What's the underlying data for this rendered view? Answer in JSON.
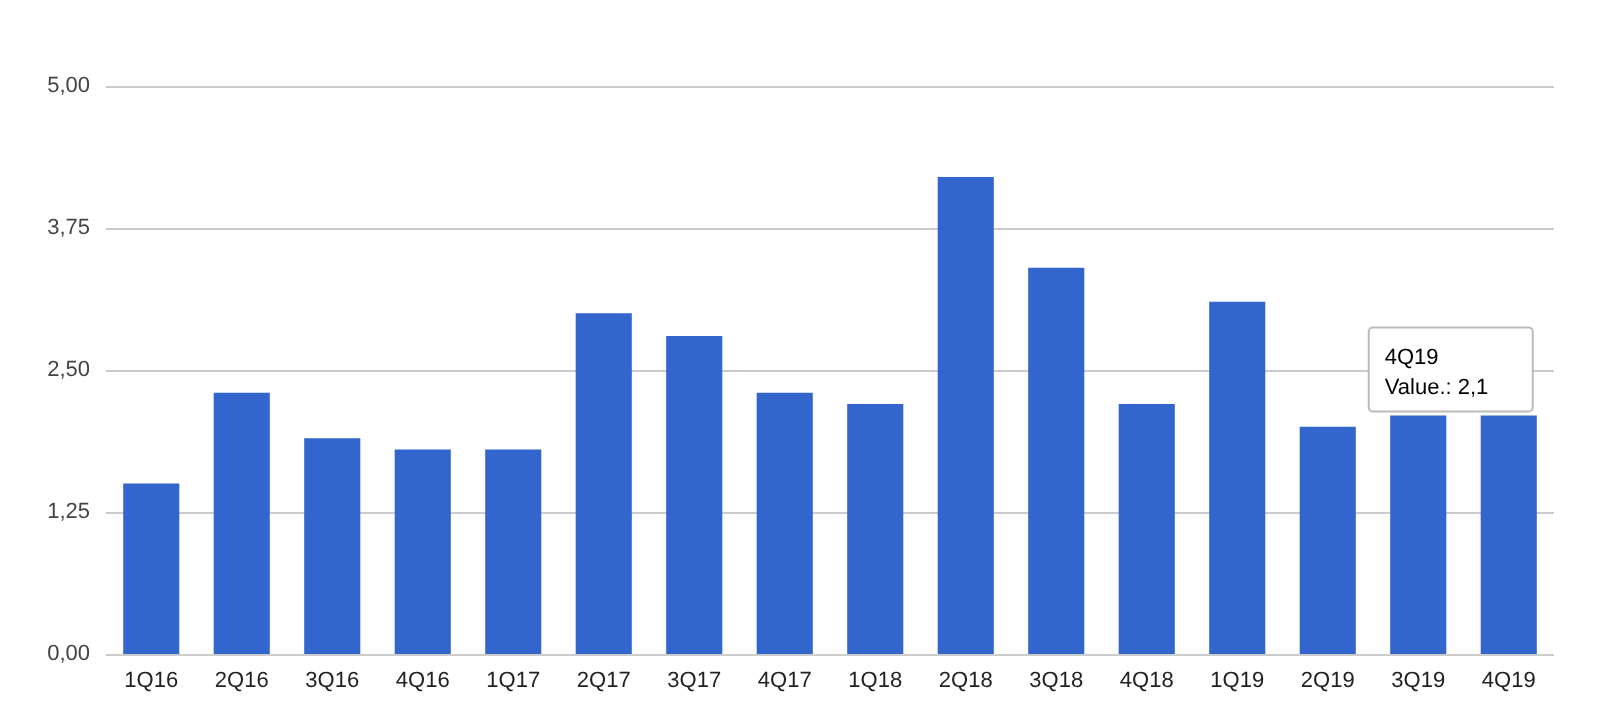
{
  "chart_data": {
    "type": "bar",
    "categories": [
      "1Q16",
      "2Q16",
      "3Q16",
      "4Q16",
      "1Q17",
      "2Q17",
      "3Q17",
      "4Q17",
      "1Q18",
      "2Q18",
      "3Q18",
      "4Q18",
      "1Q19",
      "2Q19",
      "3Q19",
      "4Q19"
    ],
    "values": [
      1.5,
      2.3,
      1.9,
      1.8,
      1.8,
      3.0,
      2.8,
      2.3,
      2.2,
      4.2,
      3.4,
      2.2,
      3.1,
      2.0,
      2.1,
      2.1
    ],
    "color": "#3366cc",
    "ylim": [
      0,
      5
    ],
    "yticks": [
      {
        "value": 0,
        "label": "0,00"
      },
      {
        "value": 1.25,
        "label": "1,25"
      },
      {
        "value": 2.5,
        "label": "2,50"
      },
      {
        "value": 3.75,
        "label": "3,75"
      },
      {
        "value": 5,
        "label": "5,00"
      }
    ],
    "grid": "y",
    "annotations": [
      {
        "text": "4Q19\nValue.: 2,1",
        "x": "4Q19",
        "y": 2.1
      }
    ]
  }
}
